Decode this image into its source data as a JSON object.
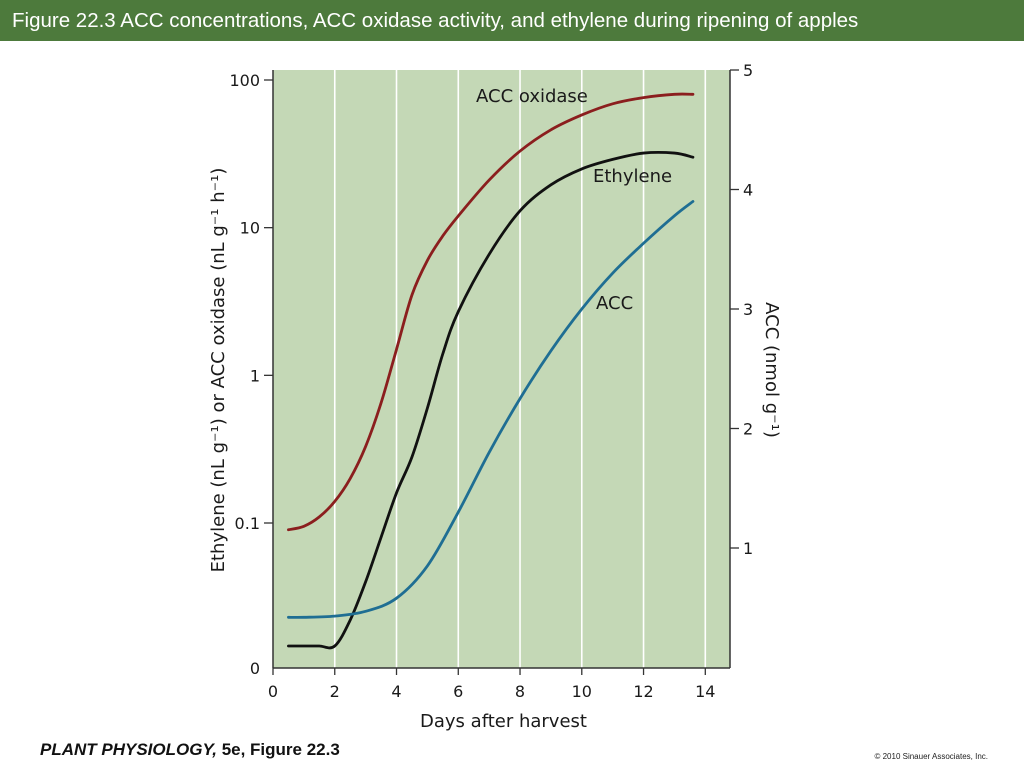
{
  "header": {
    "title": "Figure 22.3  ACC concentrations, ACC oxidase activity, and ethylene during ripening of apples"
  },
  "footer": {
    "book_title": "PLANT PHYSIOLOGY,",
    "book_edition": " 5e, Figure 22.3",
    "copyright": "© 2010 Sinauer Associates, Inc."
  },
  "colors": {
    "plot_background": "#c4d8b6",
    "acc_oxidase": "#8b1e1e",
    "ethylene": "#111111",
    "acc": "#1f6e93",
    "title_bar": "#4d7a3c"
  },
  "chart_data": {
    "type": "line",
    "title": "",
    "xlabel": "Days after harvest",
    "ylabel_left": "Ethylene (nL g⁻¹) or ACC oxidase (nL g⁻¹ h⁻¹)",
    "ylabel_right": "ACC (nmol g⁻¹)",
    "xlim": [
      0,
      14.8
    ],
    "x_ticks": [
      0,
      2,
      4,
      6,
      8,
      10,
      12,
      14
    ],
    "x_tick_labels": [
      "0",
      "2",
      "4",
      "6",
      "8",
      "10",
      "12",
      "14"
    ],
    "y_left_scale": "log",
    "y_left_ticks": [
      0.1,
      1,
      10,
      100
    ],
    "y_left_tick_labels": [
      "0.1",
      "1",
      "10",
      "100"
    ],
    "y_left_zero_label": "0",
    "y_right_scale": "linear",
    "y_right_lim": [
      0,
      5
    ],
    "y_right_ticks": [
      1,
      2,
      3,
      4,
      5
    ],
    "y_right_tick_labels": [
      "1",
      "2",
      "3",
      "4",
      "5"
    ],
    "grid": "vertical",
    "series": [
      {
        "name": "ACC oxidase",
        "axis": "left",
        "color": "#8b1e1e",
        "x": [
          0.5,
          1,
          1.5,
          2,
          2.5,
          3,
          3.5,
          4,
          4.5,
          5,
          5.5,
          6,
          7,
          8,
          9,
          10,
          11,
          12,
          13,
          13.6
        ],
        "y": [
          0.09,
          0.095,
          0.11,
          0.14,
          0.2,
          0.33,
          0.65,
          1.5,
          3.5,
          6.0,
          8.8,
          12,
          21,
          33,
          46,
          58,
          69,
          76,
          80,
          80
        ]
      },
      {
        "name": "Ethylene",
        "axis": "left",
        "color": "#111111",
        "x": [
          0.5,
          1,
          1.5,
          2,
          2.5,
          3,
          3.5,
          4,
          4.5,
          5,
          5.5,
          6,
          7,
          8,
          9,
          10,
          11,
          12,
          13,
          13.6
        ],
        "y": [
          "zero",
          "zero",
          "zero",
          "zero",
          0.022,
          0.04,
          0.08,
          0.16,
          0.28,
          0.6,
          1.4,
          2.7,
          6.6,
          13,
          19.5,
          25,
          29,
          32,
          32,
          30
        ]
      },
      {
        "name": "ACC",
        "axis": "right",
        "color": "#1f6e93",
        "x": [
          0.5,
          1,
          2,
          3,
          4,
          5,
          6,
          7,
          8,
          9,
          10,
          11,
          12,
          13,
          13.6
        ],
        "y": [
          0.42,
          0.42,
          0.43,
          0.47,
          0.58,
          0.85,
          1.3,
          1.8,
          2.25,
          2.65,
          3.0,
          3.3,
          3.55,
          3.78,
          3.9
        ]
      }
    ],
    "series_labels": [
      "ACC oxidase",
      "Ethylene",
      "ACC"
    ]
  }
}
